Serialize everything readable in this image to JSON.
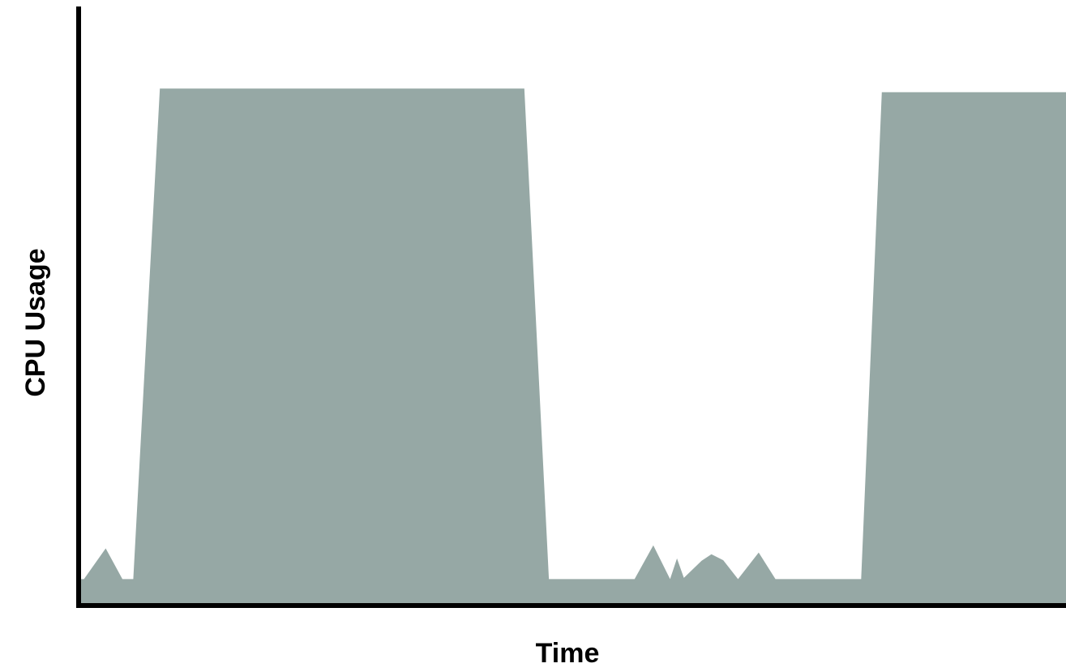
{
  "chart_data": {
    "type": "area",
    "title": "",
    "xlabel": "Time",
    "ylabel": "CPU Usage",
    "xlim": [
      0,
      100
    ],
    "ylim": [
      0,
      100
    ],
    "grid": false,
    "legend": "none",
    "colors": {
      "fill": "#96a8a5",
      "axis": "#000000"
    },
    "series": [
      {
        "x": [
          0,
          0.3,
          2.5,
          4.2,
          5.3,
          8.0,
          45.0,
          47.5,
          56.2,
          58.1,
          59.8,
          60.5,
          61.2,
          63.0,
          64.0,
          65.2,
          66.7,
          68.8,
          70.5,
          72.2,
          79.2,
          81.3,
          100
        ],
        "values": [
          4.2,
          4.2,
          9.4,
          4.2,
          4.2,
          87.2,
          87.2,
          4.2,
          4.2,
          9.9,
          4.2,
          7.7,
          4.4,
          7.3,
          8.4,
          7.4,
          4.2,
          8.7,
          4.2,
          4.2,
          4.2,
          86.6,
          86.6
        ]
      }
    ]
  }
}
